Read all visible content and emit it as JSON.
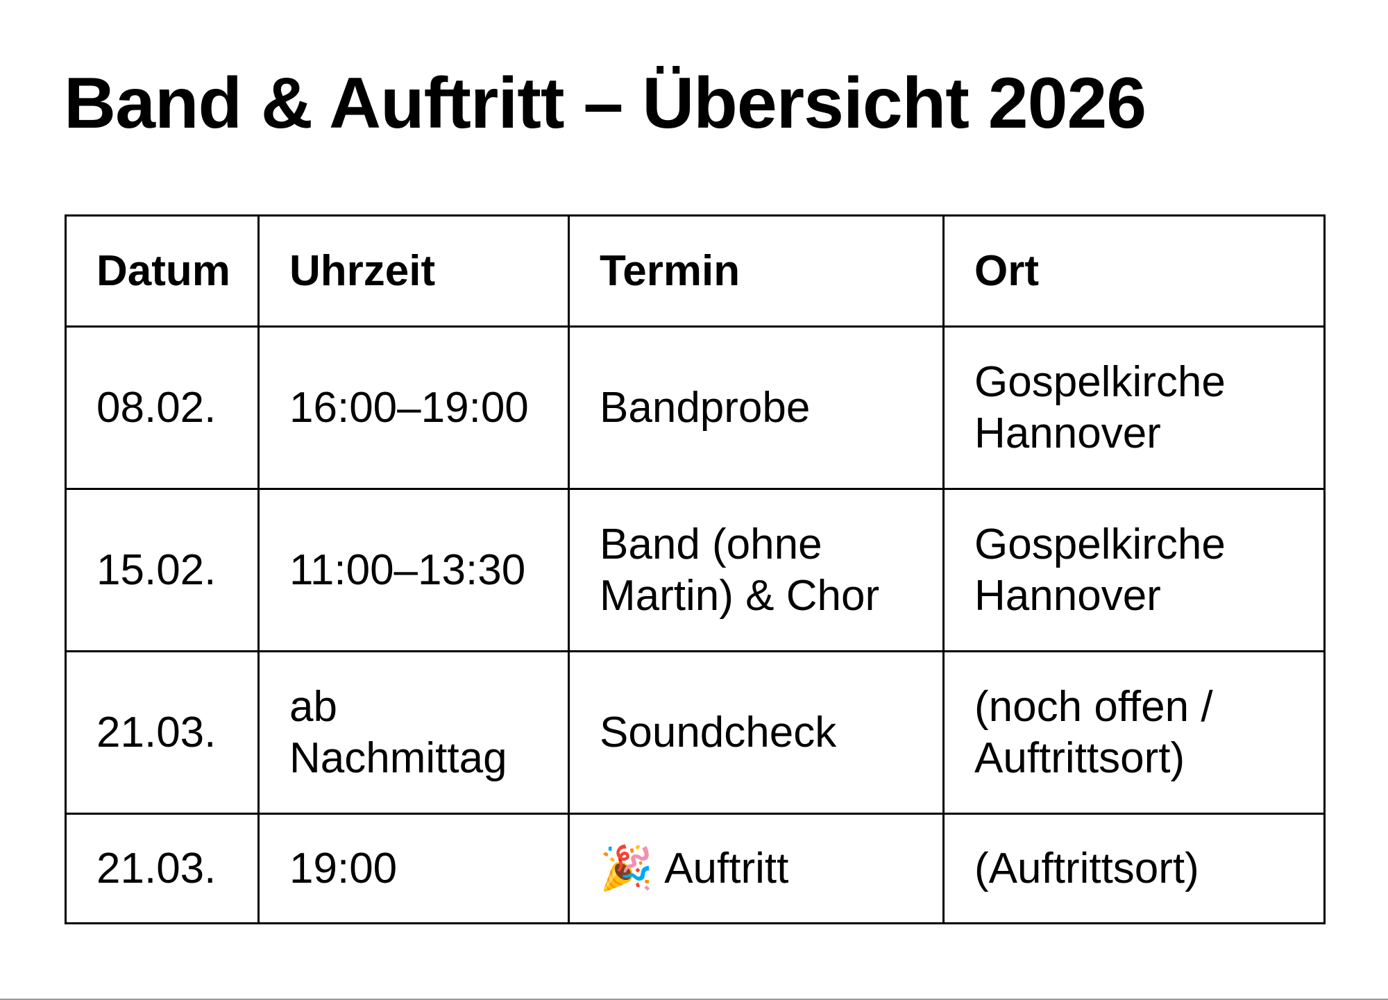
{
  "title": "Band & Auftritt – Übersicht 2026",
  "table": {
    "headers": [
      "Datum",
      "Uhrzeit",
      "Termin",
      "Ort"
    ],
    "rows": [
      {
        "datum": "08.02.",
        "uhrzeit": "16:00–19:00",
        "termin": "Bandprobe",
        "ort": "Gospelkirche Hannover"
      },
      {
        "datum": "15.02.",
        "uhrzeit": "11:00–13:30",
        "termin": "Band (ohne Martin) & Chor",
        "ort": "Gospelkirche Hannover"
      },
      {
        "datum": "21.03.",
        "uhrzeit": "ab Nachmittag",
        "termin": "Soundcheck",
        "ort": "(noch offen / Auftrittsort)"
      },
      {
        "datum": "21.03.",
        "uhrzeit": "19:00",
        "termin_icon": "🎉",
        "termin": "Auftritt",
        "ort": "(Auftrittsort)"
      }
    ]
  }
}
